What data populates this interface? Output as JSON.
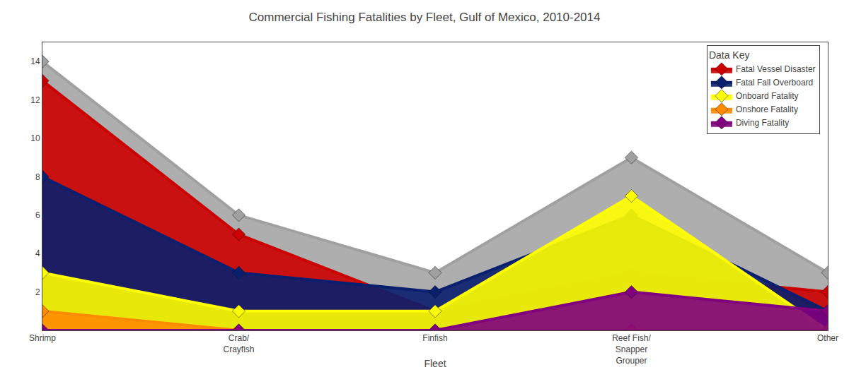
{
  "chart_data": {
    "type": "area",
    "title": "Commercial Fishing Fatalities by Fleet, Gulf of Mexico, 2010-2014",
    "x_label": "Fleet",
    "categories": [
      "Shrimp",
      "Crab/\nCrayfish",
      "Finfish",
      "Reef Fish/\nSnapper\nGrouper",
      "Other"
    ],
    "series": [
      {
        "color": "#A0A0A0",
        "values": [
          14,
          6,
          3,
          9,
          3
        ]
      },
      {
        "name": "Fatal Vessel Disaster",
        "color": "#CC0000",
        "values": [
          13,
          5,
          1,
          3,
          2
        ]
      },
      {
        "name": "Fatal Fall Overboard",
        "color": "#0a1f6e",
        "values": [
          8,
          3,
          2,
          6,
          1
        ]
      },
      {
        "name": "Onboard Fatality",
        "color": "#FFFF00",
        "values": [
          3,
          1,
          1,
          7,
          0
        ]
      },
      {
        "name": "Onshore Fatality",
        "color": "#FF8C00",
        "values": [
          1,
          0,
          0,
          0,
          0
        ]
      },
      {
        "name": "Diving Fatality",
        "color": "#800080",
        "values": [
          0,
          0,
          0,
          2,
          1
        ]
      }
    ],
    "marker": "diamond",
    "ylim": [
      0,
      15
    ],
    "yticks": [
      2,
      4,
      6,
      8,
      10,
      12,
      14
    ],
    "grid": false,
    "legend": "upper right",
    "legend_title": "Data Key"
  }
}
